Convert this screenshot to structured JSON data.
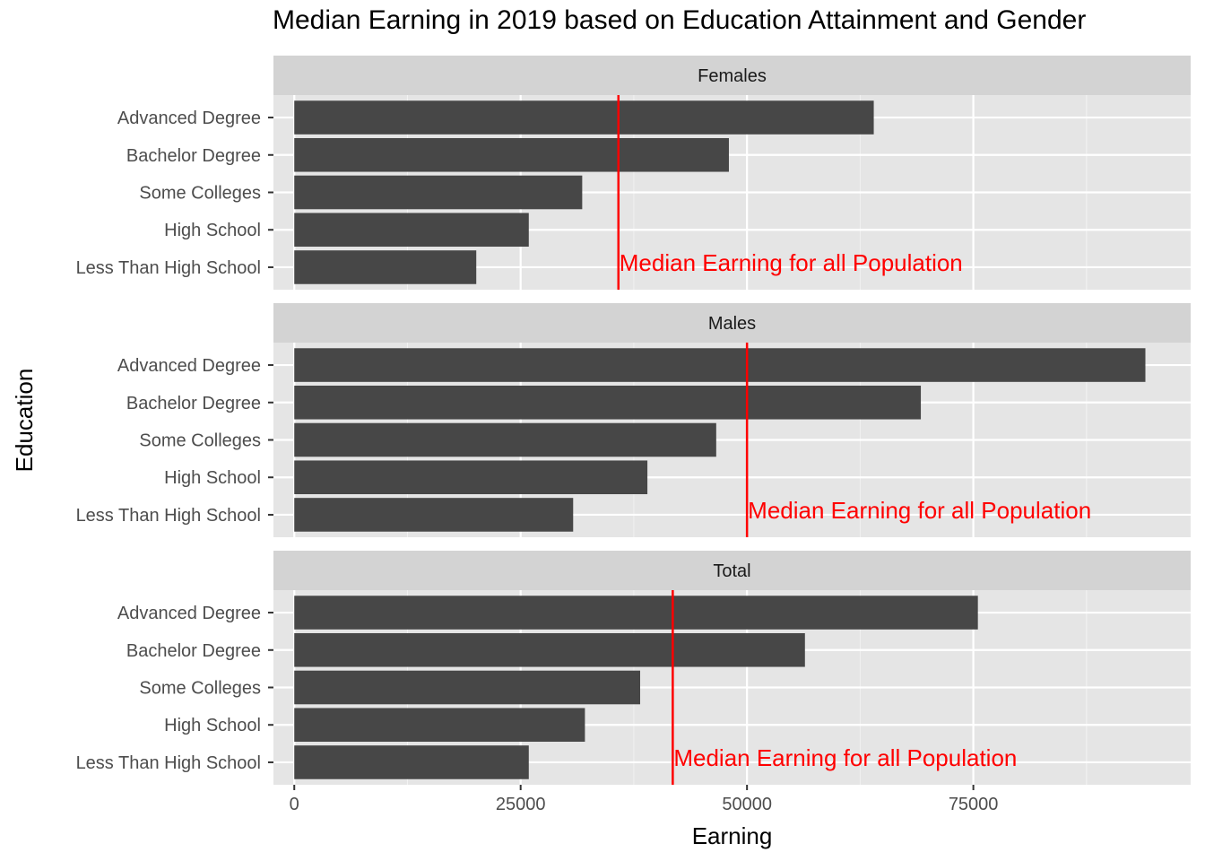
{
  "chart_data": {
    "type": "bar",
    "orientation": "horizontal",
    "title": "Median Earning in 2019 based on Education Attainment and Gender",
    "xlabel": "Earning",
    "ylabel": "Education",
    "xlim": [
      -2300,
      99000
    ],
    "x_ticks": [
      0,
      25000,
      50000,
      75000
    ],
    "x_tick_labels": [
      "0",
      "25000",
      "50000",
      "75000"
    ],
    "grid": true,
    "categories": [
      "Advanced Degree",
      "Bachelor Degree",
      "Some Colleges",
      "High School",
      "Less Than High School"
    ],
    "facets": [
      {
        "name": "Females",
        "values": [
          64000,
          48000,
          31800,
          25900,
          20100
        ],
        "median": 35800
      },
      {
        "name": "Males",
        "values": [
          94000,
          69200,
          46600,
          39000,
          30800
        ],
        "median": 50000
      },
      {
        "name": "Total",
        "values": [
          75500,
          56400,
          38200,
          32100,
          25900
        ],
        "median": 41800
      }
    ],
    "reference_line_label": "Median Earning for all Population",
    "colors": {
      "bar": "#474747",
      "reference_line": "#ff0000",
      "panel_background": "#e5e5e5",
      "strip_background": "#d3d3d3"
    }
  }
}
